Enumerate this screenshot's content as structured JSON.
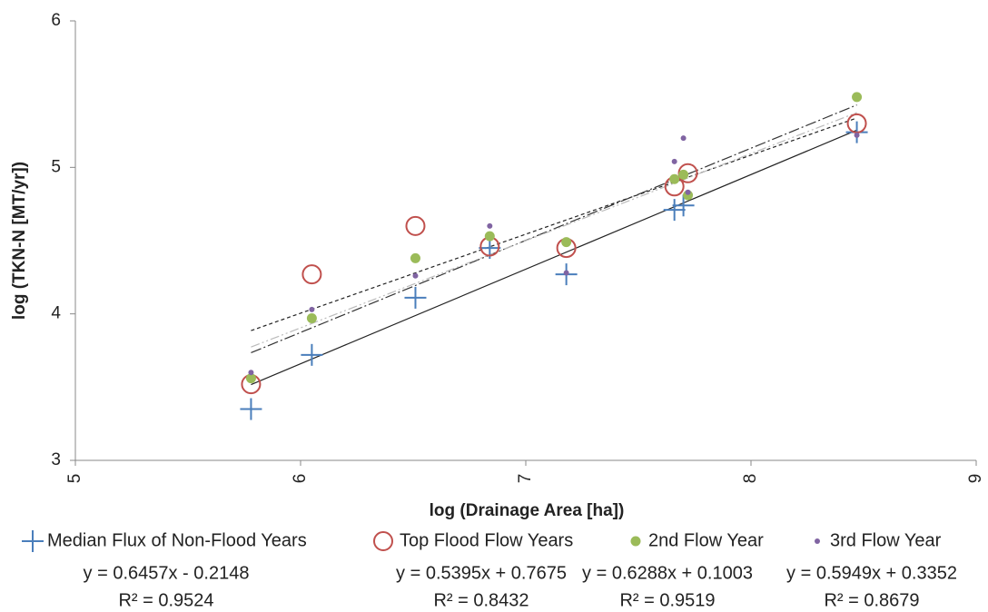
{
  "chart_data": {
    "type": "scatter",
    "x_label": "log (Drainage Area [ha])",
    "y_label": "log (TKN-N [MT/yr])",
    "xlim": [
      5,
      9
    ],
    "xticks": [
      5,
      6,
      7,
      8,
      9
    ],
    "ylim": [
      3,
      6
    ],
    "yticks": [
      3,
      4,
      5,
      6
    ],
    "grid": false,
    "series": [
      {
        "name": "Median Flux of Non-Flood Years",
        "color": "#4a7ebb",
        "marker": "plus",
        "x": [
          5.78,
          6.05,
          6.51,
          6.84,
          7.18,
          7.66,
          7.7,
          8.47
        ],
        "values": [
          3.35,
          3.72,
          4.11,
          4.45,
          4.27,
          4.71,
          4.74,
          5.24
        ],
        "trendline": {
          "equation": "y = 0.6457x - 0.2148",
          "slope": 0.6457,
          "intercept": -0.2148,
          "r2_label": "R² = 0.9524",
          "r2": 0.9524
        }
      },
      {
        "name": "Top Flood Flow Years",
        "color": "#c0504d",
        "marker": "open-circle",
        "x": [
          5.78,
          6.05,
          6.51,
          6.84,
          7.18,
          7.66,
          7.72,
          8.47
        ],
        "values": [
          3.52,
          4.27,
          4.6,
          4.46,
          4.45,
          4.87,
          4.96,
          5.3
        ],
        "trendline": {
          "equation": "y = 0.5395x + 0.7675",
          "slope": 0.5395,
          "intercept": 0.7675,
          "r2_label": "R² = 0.8432",
          "r2": 0.8432
        }
      },
      {
        "name": "2nd Flow Year",
        "color": "#9bbb59",
        "marker": "dot",
        "x": [
          5.78,
          6.05,
          6.51,
          6.84,
          7.18,
          7.66,
          7.7,
          7.72,
          8.47
        ],
        "values": [
          3.56,
          3.97,
          4.38,
          4.53,
          4.49,
          4.92,
          4.95,
          4.81,
          5.48
        ],
        "trendline": {
          "equation": "y = 0.6288x + 0.1003",
          "slope": 0.6288,
          "intercept": 0.1003,
          "r2_label": "R² = 0.9519",
          "r2": 0.9519
        }
      },
      {
        "name": "3rd Flow Year",
        "color": "#8064a2",
        "marker": "small-dot",
        "x": [
          5.78,
          6.05,
          6.51,
          6.84,
          7.18,
          7.66,
          7.7,
          7.72,
          8.47
        ],
        "values": [
          3.6,
          4.03,
          4.26,
          4.6,
          4.28,
          5.04,
          5.2,
          4.83,
          5.22
        ],
        "trendline": {
          "equation": "y = 0.5949x + 0.3352",
          "slope": 0.5949,
          "intercept": 0.3352,
          "r2_label": "R² = 0.8679",
          "r2": 0.8679
        }
      }
    ]
  }
}
